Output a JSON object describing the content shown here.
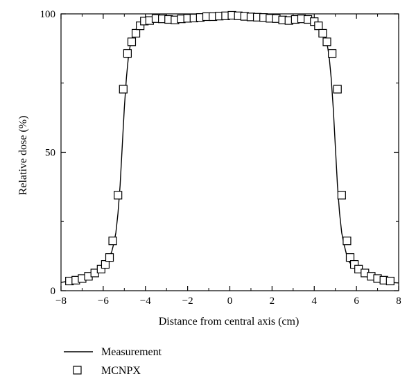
{
  "chart_data": {
    "type": "line",
    "title": "",
    "xlabel": "Distance from central axis (cm)",
    "ylabel": "Relative dose (%)",
    "xlim": [
      -8,
      8
    ],
    "ylim": [
      0,
      100
    ],
    "x_ticks": [
      -8,
      -6,
      -4,
      -2,
      0,
      2,
      4,
      6,
      8
    ],
    "x_tick_labels": [
      "−8",
      "−6",
      "−4",
      "−2",
      "0",
      "2",
      "4",
      "6",
      "8"
    ],
    "y_ticks": [
      0,
      50,
      100
    ],
    "y_tick_labels": [
      "0",
      "50",
      "100"
    ],
    "grid": false,
    "legend_position": "below-left",
    "series": [
      {
        "name": "Measurement",
        "style": "line",
        "color": "#000000",
        "x": [
          -8.0,
          -7.6,
          -7.2,
          -6.8,
          -6.4,
          -6.2,
          -6.0,
          -5.8,
          -5.6,
          -5.5,
          -5.4,
          -5.3,
          -5.2,
          -5.1,
          -5.0,
          -4.9,
          -4.8,
          -4.7,
          -4.6,
          -4.5,
          -4.4,
          -4.2,
          -4.0,
          -3.6,
          -3.2,
          -2.8,
          -2.4,
          -2.0,
          -1.6,
          -1.2,
          -0.8,
          -0.4,
          0.0,
          0.4,
          0.8,
          1.2,
          1.6,
          2.0,
          2.4,
          2.8,
          3.2,
          3.6,
          4.0,
          4.2,
          4.4,
          4.5,
          4.6,
          4.7,
          4.8,
          4.9,
          5.0,
          5.1,
          5.2,
          5.3,
          5.4,
          5.5,
          5.6,
          5.8,
          6.0,
          6.2,
          6.4,
          6.8,
          7.2,
          7.6,
          8.0
        ],
        "y": [
          3.0,
          3.5,
          4.2,
          5.2,
          6.5,
          7.5,
          9.0,
          11.0,
          14.0,
          17.0,
          21.0,
          28.0,
          38.0,
          52.0,
          66.0,
          77.0,
          85.0,
          89.5,
          92.0,
          93.8,
          95.0,
          96.5,
          97.5,
          98.0,
          98.2,
          98.3,
          98.5,
          98.8,
          99.0,
          99.2,
          99.4,
          99.6,
          99.6,
          99.4,
          99.2,
          99.0,
          98.8,
          98.5,
          98.3,
          98.2,
          98.0,
          97.5,
          96.5,
          95.0,
          93.8,
          92.0,
          89.5,
          85.0,
          77.0,
          66.0,
          52.0,
          38.0,
          28.0,
          21.0,
          17.0,
          14.0,
          11.0,
          9.0,
          7.5,
          6.5,
          5.2,
          4.2,
          3.5,
          3.0,
          2.8
        ]
      },
      {
        "name": "MCNPX",
        "style": "open-square-markers",
        "color": "#000000",
        "x": [
          -7.6,
          -7.3,
          -7.0,
          -6.7,
          -6.4,
          -6.1,
          -5.9,
          -5.7,
          -5.55,
          -5.3,
          -5.05,
          -4.85,
          -4.65,
          -4.45,
          -4.25,
          -4.05,
          -3.8,
          -3.5,
          -3.2,
          -2.9,
          -2.6,
          -2.3,
          -2.0,
          -1.7,
          -1.4,
          -1.1,
          -0.8,
          -0.5,
          -0.2,
          0.1,
          0.4,
          0.7,
          1.0,
          1.3,
          1.6,
          1.9,
          2.2,
          2.5,
          2.8,
          3.1,
          3.4,
          3.7,
          4.0,
          4.2,
          4.4,
          4.6,
          4.85,
          5.1,
          5.3,
          5.55,
          5.7,
          5.9,
          6.1,
          6.4,
          6.7,
          7.0,
          7.3,
          7.6
        ],
        "y": [
          3.5,
          3.8,
          4.4,
          5.2,
          6.4,
          7.8,
          9.5,
          12.0,
          18.0,
          34.5,
          72.8,
          85.7,
          89.9,
          93.0,
          95.7,
          97.4,
          97.6,
          98.3,
          98.2,
          98.0,
          97.8,
          98.2,
          98.4,
          98.5,
          98.7,
          99.0,
          99.0,
          99.2,
          99.3,
          99.5,
          99.3,
          99.1,
          98.9,
          98.8,
          98.7,
          98.4,
          98.3,
          97.8,
          97.6,
          98.0,
          98.2,
          98.0,
          97.2,
          95.7,
          93.0,
          89.9,
          85.7,
          72.8,
          34.5,
          18.0,
          12.0,
          9.5,
          7.8,
          6.4,
          5.2,
          4.4,
          3.8,
          3.5
        ]
      }
    ]
  }
}
